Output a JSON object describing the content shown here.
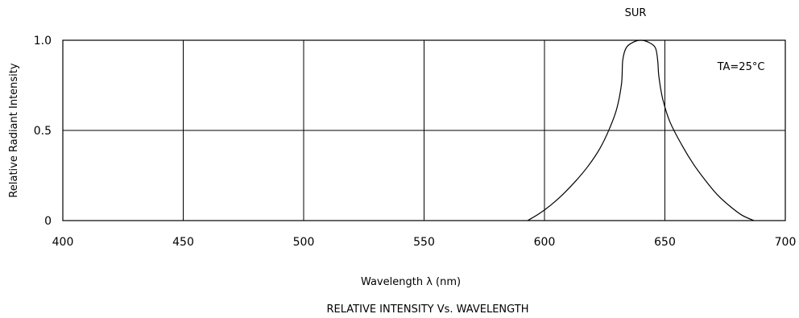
{
  "chart_data": {
    "type": "line",
    "title": "RELATIVE INTENSITY Vs. WAVELENGTH",
    "series_label": "SUR",
    "annotation": "TA=25°C",
    "xlabel": "Wavelength λ (nm)",
    "ylabel": "Relative Radiant Intensity",
    "xlim": [
      400,
      700
    ],
    "ylim": [
      0,
      1.0
    ],
    "grid": true,
    "x_ticks": [
      {
        "value": 400,
        "label": "400"
      },
      {
        "value": 450,
        "label": "450"
      },
      {
        "value": 500,
        "label": "500"
      },
      {
        "value": 550,
        "label": "550"
      },
      {
        "value": 600,
        "label": "600"
      },
      {
        "value": 650,
        "label": "650"
      },
      {
        "value": 700,
        "label": "700"
      }
    ],
    "y_ticks": [
      {
        "value": 0,
        "label": "0"
      },
      {
        "value": 0.5,
        "label": "0.5"
      },
      {
        "value": 1.0,
        "label": "1.0"
      }
    ],
    "series": [
      {
        "x": [
          593,
          598,
          603,
          608,
          613,
          618,
          623,
          627,
          630,
          632,
          632.5,
          634,
          637,
          640,
          643,
          646,
          647,
          647.5,
          649,
          652,
          657,
          662,
          667,
          672,
          677,
          682,
          687
        ],
        "y": [
          0,
          0.04,
          0.09,
          0.15,
          0.22,
          0.3,
          0.4,
          0.51,
          0.62,
          0.76,
          0.89,
          0.96,
          0.99,
          1.0,
          0.99,
          0.96,
          0.89,
          0.8,
          0.68,
          0.55,
          0.42,
          0.31,
          0.22,
          0.14,
          0.08,
          0.03,
          0
        ]
      }
    ],
    "colors": {
      "line": "#000000",
      "grid": "#000000",
      "background": "#ffffff"
    }
  }
}
